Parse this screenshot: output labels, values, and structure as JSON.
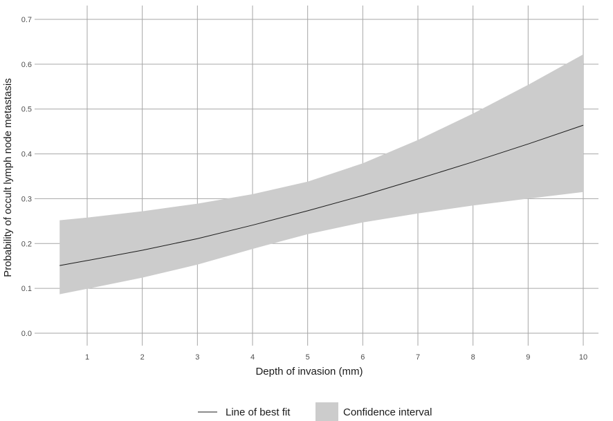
{
  "chart_data": {
    "type": "line",
    "xlabel": "Depth of invasion (mm)",
    "ylabel": "Probability of occult lymph node metastasis",
    "xlim": [
      0.5,
      10
    ],
    "ylim": [
      0,
      0.7
    ],
    "x_ticks": [
      1,
      2,
      3,
      4,
      5,
      6,
      7,
      8,
      9,
      10
    ],
    "y_ticks": [
      0.0,
      0.1,
      0.2,
      0.3,
      0.4,
      0.5,
      0.6,
      0.7
    ],
    "x_tick_labels": [
      "1",
      "2",
      "3",
      "4",
      "5",
      "6",
      "7",
      "8",
      "9",
      "10"
    ],
    "y_tick_labels": [
      "0.0",
      "0.1",
      "0.2",
      "0.3",
      "0.4",
      "0.5",
      "0.6",
      "0.7"
    ],
    "grid": true,
    "legend_position": "bottom",
    "series": [
      {
        "name": "Line of best fit",
        "color": "#1a1a1a",
        "x": [
          0.5,
          1,
          2,
          3,
          4,
          5,
          6,
          7,
          8,
          9,
          10
        ],
        "y": [
          0.151,
          0.162,
          0.185,
          0.211,
          0.241,
          0.273,
          0.307,
          0.344,
          0.382,
          0.422,
          0.464
        ]
      }
    ],
    "confidence_interval": {
      "name": "Confidence interval",
      "color": "#cccccc",
      "x": [
        0.5,
        1,
        2,
        3,
        4,
        5,
        6,
        7,
        8,
        9,
        10
      ],
      "lower": [
        0.087,
        0.099,
        0.124,
        0.153,
        0.188,
        0.221,
        0.247,
        0.267,
        0.285,
        0.3,
        0.315
      ],
      "upper": [
        0.252,
        0.258,
        0.272,
        0.289,
        0.31,
        0.338,
        0.379,
        0.431,
        0.49,
        0.554,
        0.622
      ]
    }
  }
}
